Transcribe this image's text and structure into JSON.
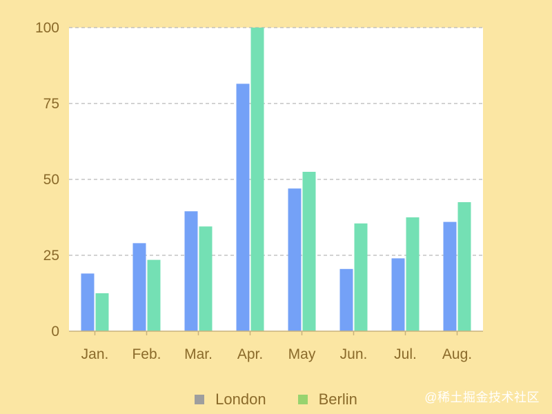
{
  "chart_data": {
    "type": "bar",
    "categories": [
      "Jan.",
      "Feb.",
      "Mar.",
      "Apr.",
      "May",
      "Jun.",
      "Jul.",
      "Aug."
    ],
    "series": [
      {
        "name": "London",
        "color": "#74a1f7",
        "values": [
          19,
          29,
          39.5,
          81.5,
          47,
          20.5,
          24,
          36
        ]
      },
      {
        "name": "Berlin",
        "color": "#74e0b4",
        "values": [
          12.5,
          23.5,
          34.5,
          100,
          52.5,
          35.5,
          37.5,
          42.5
        ]
      }
    ],
    "yticks": [
      0,
      25,
      50,
      75,
      100
    ],
    "ylim": [
      0,
      100
    ],
    "grid": true,
    "legend": {
      "position": "bottom",
      "swatch_colors": [
        "#9e9e9e",
        "#97d36f"
      ]
    }
  },
  "watermark": "@稀土掘金技术社区"
}
